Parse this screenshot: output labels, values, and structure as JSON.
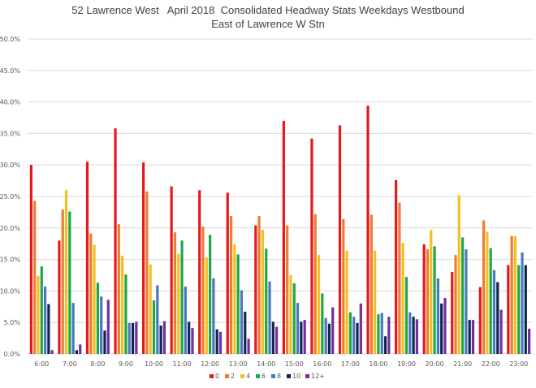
{
  "chart_data": {
    "type": "bar",
    "title": "52 Lawrence West   April 2018  Consolidated Headway Stats Weekdays Westbound",
    "subtitle": "East of Lawrence W Stn",
    "xlabel": "",
    "ylabel": "",
    "ylim": [
      0,
      50
    ],
    "y_tick_labels": [
      "0.0%",
      "5.0%",
      "10.0%",
      "15.0%",
      "20.0%",
      "25.0%",
      "30.0%",
      "35.0%",
      "40.0%",
      "45.0%",
      "50.0%"
    ],
    "grid": true,
    "legend_position": "bottom",
    "categories": [
      "6:00",
      "7:00",
      "8:00",
      "9:00",
      "10:00",
      "11:00",
      "12:00",
      "13:00",
      "14:00",
      "15:00",
      "16:00",
      "17:00",
      "18:00",
      "19:00",
      "20:00",
      "21:00",
      "22:00",
      "23:00"
    ],
    "series": [
      {
        "name": "0",
        "color": "#e3191c",
        "values": [
          30.0,
          18.0,
          30.5,
          35.8,
          30.4,
          26.6,
          26.0,
          25.6,
          20.4,
          37.0,
          34.2,
          36.3,
          39.4,
          27.6,
          17.4,
          13.0,
          10.6,
          14.1
        ]
      },
      {
        "name": "2",
        "color": "#ed7d31",
        "values": [
          24.3,
          22.9,
          19.1,
          20.6,
          25.8,
          19.3,
          20.2,
          21.9,
          21.9,
          20.4,
          22.2,
          21.4,
          22.1,
          24.0,
          16.6,
          15.7,
          21.2,
          18.7
        ]
      },
      {
        "name": "4",
        "color": "#f4c020",
        "values": [
          12.4,
          26.0,
          17.3,
          15.6,
          14.2,
          15.9,
          15.3,
          17.4,
          19.7,
          12.5,
          15.7,
          16.4,
          16.4,
          17.6,
          19.7,
          25.2,
          19.4,
          18.7
        ]
      },
      {
        "name": "6",
        "color": "#1ea64a",
        "values": [
          13.9,
          22.6,
          11.3,
          12.6,
          8.5,
          18.0,
          18.9,
          15.8,
          16.7,
          11.2,
          9.6,
          6.6,
          6.3,
          12.2,
          17.1,
          18.5,
          16.8,
          14.1
        ]
      },
      {
        "name": "8",
        "color": "#4a78be",
        "values": [
          10.7,
          8.1,
          9.1,
          4.9,
          10.9,
          10.7,
          12.0,
          10.1,
          11.5,
          8.1,
          5.7,
          5.9,
          6.5,
          6.6,
          12.0,
          16.6,
          13.3,
          16.1
        ]
      },
      {
        "name": "10",
        "color": "#12244f",
        "values": [
          7.9,
          0.6,
          3.7,
          4.9,
          4.5,
          5.1,
          3.9,
          6.7,
          5.1,
          5.1,
          4.8,
          4.9,
          2.8,
          5.9,
          8.0,
          5.4,
          11.4,
          14.1
        ]
      },
      {
        "name": "12+",
        "color": "#7030a0",
        "values": [
          0.6,
          1.5,
          8.6,
          5.1,
          5.2,
          4.1,
          3.5,
          2.4,
          4.3,
          5.4,
          7.4,
          8.0,
          5.9,
          5.5,
          8.9,
          5.4,
          7.0,
          4.0
        ]
      }
    ]
  }
}
